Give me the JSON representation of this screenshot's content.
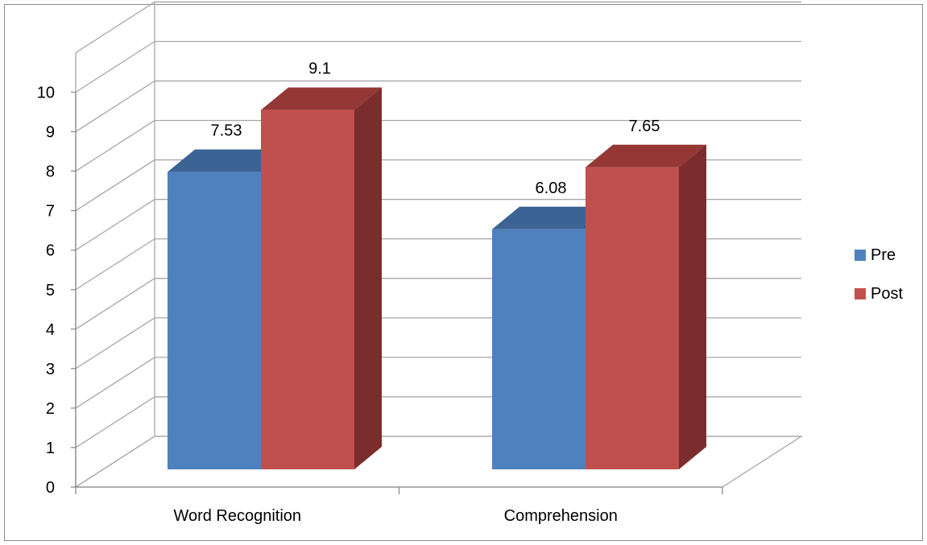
{
  "chart_data": {
    "type": "bar",
    "style": "3d-clustered-column",
    "categories": [
      "Word Recognition",
      "Comprehension"
    ],
    "series": [
      {
        "name": "Pre",
        "values": [
          7.53,
          6.08
        ],
        "color": "#4f81bd",
        "top_color": "#3b6394",
        "side_color": "#385d8a"
      },
      {
        "name": "Post",
        "values": [
          9.1,
          7.65
        ],
        "color": "#c0504d",
        "top_color": "#953735",
        "side_color": "#7b2c2c"
      }
    ],
    "data_labels": [
      "7.53",
      "6.08",
      "9.1",
      "7.65"
    ],
    "yticks": [
      "0",
      "1",
      "2",
      "3",
      "4",
      "5",
      "6",
      "7",
      "8",
      "9",
      "10"
    ],
    "ylim": [
      0,
      10
    ],
    "grid": true,
    "grid_color": "#a6a6a6",
    "legend_position": "right"
  }
}
